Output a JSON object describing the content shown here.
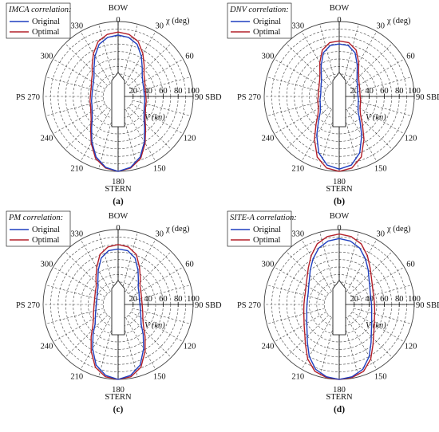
{
  "legend": {
    "original_label": "Original",
    "optimal_label": "Optimal"
  },
  "colors": {
    "original": "#1f3fbf",
    "optimal": "#b3202a",
    "grid": "#444444",
    "vessel_fill": "#ffffff"
  },
  "axes": {
    "bow_label": "BOW",
    "stern_label": "STERN",
    "sbd_label": "90 SBD",
    "ps_label": "PS 270",
    "chi_label": "χ (deg)",
    "speed_label": "V (kn)",
    "angle_labels": [
      "0",
      "30",
      "60",
      "120",
      "150",
      "180",
      "210",
      "240",
      "300",
      "330"
    ],
    "radial_ticks": [
      "20",
      "40",
      "60",
      "80",
      "100"
    ]
  },
  "chart_data": [
    {
      "type": "polar-line",
      "title": "IMCA correlation:",
      "caption": "(a)",
      "angle_unit": "deg",
      "radial_unit": "kn",
      "rlim": [
        0,
        100
      ],
      "angles": [
        0,
        10,
        20,
        30,
        40,
        50,
        60,
        70,
        80,
        90,
        100,
        110,
        120,
        130,
        140,
        150,
        160,
        170,
        180
      ],
      "series": [
        {
          "name": "Original",
          "style": "solid",
          "values": [
            82,
            80,
            74,
            62,
            50,
            42,
            38,
            36,
            35,
            35,
            36,
            37,
            40,
            45,
            55,
            70,
            86,
            96,
            100
          ]
        },
        {
          "name": "Optimal",
          "style": "solid",
          "values": [
            86,
            84,
            78,
            66,
            54,
            45,
            41,
            38,
            37,
            37,
            38,
            39,
            42,
            47,
            57,
            72,
            88,
            97,
            100
          ]
        }
      ]
    },
    {
      "type": "polar-line",
      "title": "DNV correlation:",
      "caption": "(b)",
      "angle_unit": "deg",
      "radial_unit": "kn",
      "rlim": [
        0,
        100
      ],
      "angles": [
        0,
        10,
        20,
        30,
        40,
        50,
        60,
        70,
        80,
        90,
        100,
        110,
        120,
        130,
        140,
        150,
        160,
        170,
        180
      ],
      "series": [
        {
          "name": "Original",
          "style": "solid",
          "values": [
            70,
            69,
            62,
            48,
            37,
            31,
            28,
            26,
            25,
            25,
            26,
            27,
            29,
            33,
            43,
            60,
            80,
            93,
            97
          ]
        },
        {
          "name": "Optimal",
          "style": "solid",
          "values": [
            74,
            73,
            66,
            52,
            40,
            34,
            31,
            29,
            28,
            28,
            29,
            30,
            32,
            37,
            48,
            66,
            86,
            97,
            100
          ]
        }
      ]
    },
    {
      "type": "polar-line",
      "title": "PM correlation:",
      "caption": "(c)",
      "angle_unit": "deg",
      "radial_unit": "kn",
      "rlim": [
        0,
        100
      ],
      "angles": [
        0,
        10,
        20,
        30,
        40,
        50,
        60,
        70,
        80,
        90,
        100,
        110,
        120,
        130,
        140,
        150,
        160,
        170,
        180
      ],
      "series": [
        {
          "name": "Original",
          "style": "solid",
          "values": [
            74,
            73,
            66,
            53,
            42,
            35,
            32,
            30,
            29,
            29,
            30,
            32,
            35,
            40,
            52,
            68,
            86,
            96,
            100
          ]
        },
        {
          "name": "Optimal",
          "style": "solid",
          "values": [
            80,
            78,
            71,
            57,
            46,
            38,
            35,
            33,
            32,
            32,
            33,
            35,
            38,
            44,
            56,
            72,
            89,
            98,
            100
          ]
        }
      ]
    },
    {
      "type": "polar-line",
      "title": "SITE-A correlation:",
      "caption": "(d)",
      "angle_unit": "deg",
      "radial_unit": "kn",
      "rlim": [
        0,
        100
      ],
      "angles": [
        0,
        10,
        20,
        30,
        40,
        50,
        60,
        70,
        80,
        90,
        100,
        110,
        120,
        130,
        140,
        150,
        160,
        170,
        180
      ],
      "series": [
        {
          "name": "Original",
          "style": "solid",
          "values": [
            88,
            86,
            80,
            70,
            60,
            52,
            47,
            44,
            43,
            43,
            44,
            46,
            50,
            56,
            66,
            80,
            92,
            98,
            100
          ]
        },
        {
          "name": "Optimal",
          "style": "solid",
          "values": [
            94,
            92,
            86,
            75,
            64,
            56,
            51,
            48,
            47,
            47,
            48,
            50,
            54,
            60,
            70,
            84,
            95,
            99,
            100
          ]
        }
      ]
    }
  ]
}
